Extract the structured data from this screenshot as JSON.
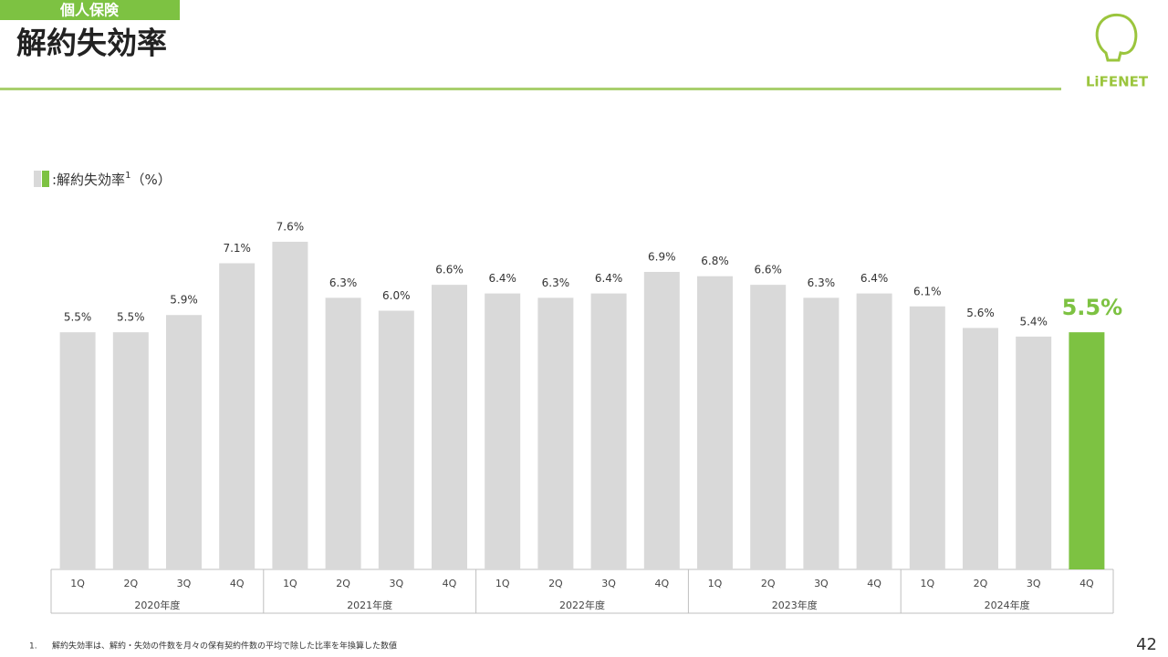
{
  "chart_data": {
    "type": "bar",
    "section_tag": "個人保険",
    "title": "解約失効率",
    "logo": "LiFENET",
    "legend": {
      "name": ":解約失効率",
      "note_ref": "1",
      "unit": "（%）"
    },
    "categories": [
      "1Q",
      "2Q",
      "3Q",
      "4Q",
      "1Q",
      "2Q",
      "3Q",
      "4Q",
      "1Q",
      "2Q",
      "3Q",
      "4Q",
      "1Q",
      "2Q",
      "3Q",
      "4Q",
      "1Q",
      "2Q",
      "3Q",
      "4Q"
    ],
    "groups": [
      "2020年度",
      "2021年度",
      "2022年度",
      "2023年度",
      "2024年度"
    ],
    "values": [
      5.5,
      5.5,
      5.9,
      7.1,
      7.6,
      6.3,
      6.0,
      6.6,
      6.4,
      6.3,
      6.4,
      6.9,
      6.8,
      6.6,
      6.3,
      6.4,
      6.1,
      5.6,
      5.4,
      5.5
    ],
    "value_labels": [
      "5.5%",
      "5.5%",
      "5.9%",
      "7.1%",
      "7.6%",
      "6.3%",
      "6.0%",
      "6.6%",
      "6.4%",
      "6.3%",
      "6.4%",
      "6.9%",
      "6.8%",
      "6.6%",
      "6.3%",
      "6.4%",
      "6.1%",
      "5.6%",
      "5.4%",
      "5.5%"
    ],
    "colors": [
      "#d9d9d9",
      "#d9d9d9",
      "#d9d9d9",
      "#d9d9d9",
      "#d9d9d9",
      "#d9d9d9",
      "#d9d9d9",
      "#d9d9d9",
      "#d9d9d9",
      "#d9d9d9",
      "#d9d9d9",
      "#d9d9d9",
      "#d9d9d9",
      "#d9d9d9",
      "#d9d9d9",
      "#d9d9d9",
      "#d9d9d9",
      "#d9d9d9",
      "#d9d9d9",
      "#7dc242"
    ],
    "footnote": {
      "number": "1.",
      "text": "解約失効率は、解約・失効の件数を月々の保有契約件数の平均で除した比率を年換算した数値"
    },
    "page_number": "42"
  }
}
